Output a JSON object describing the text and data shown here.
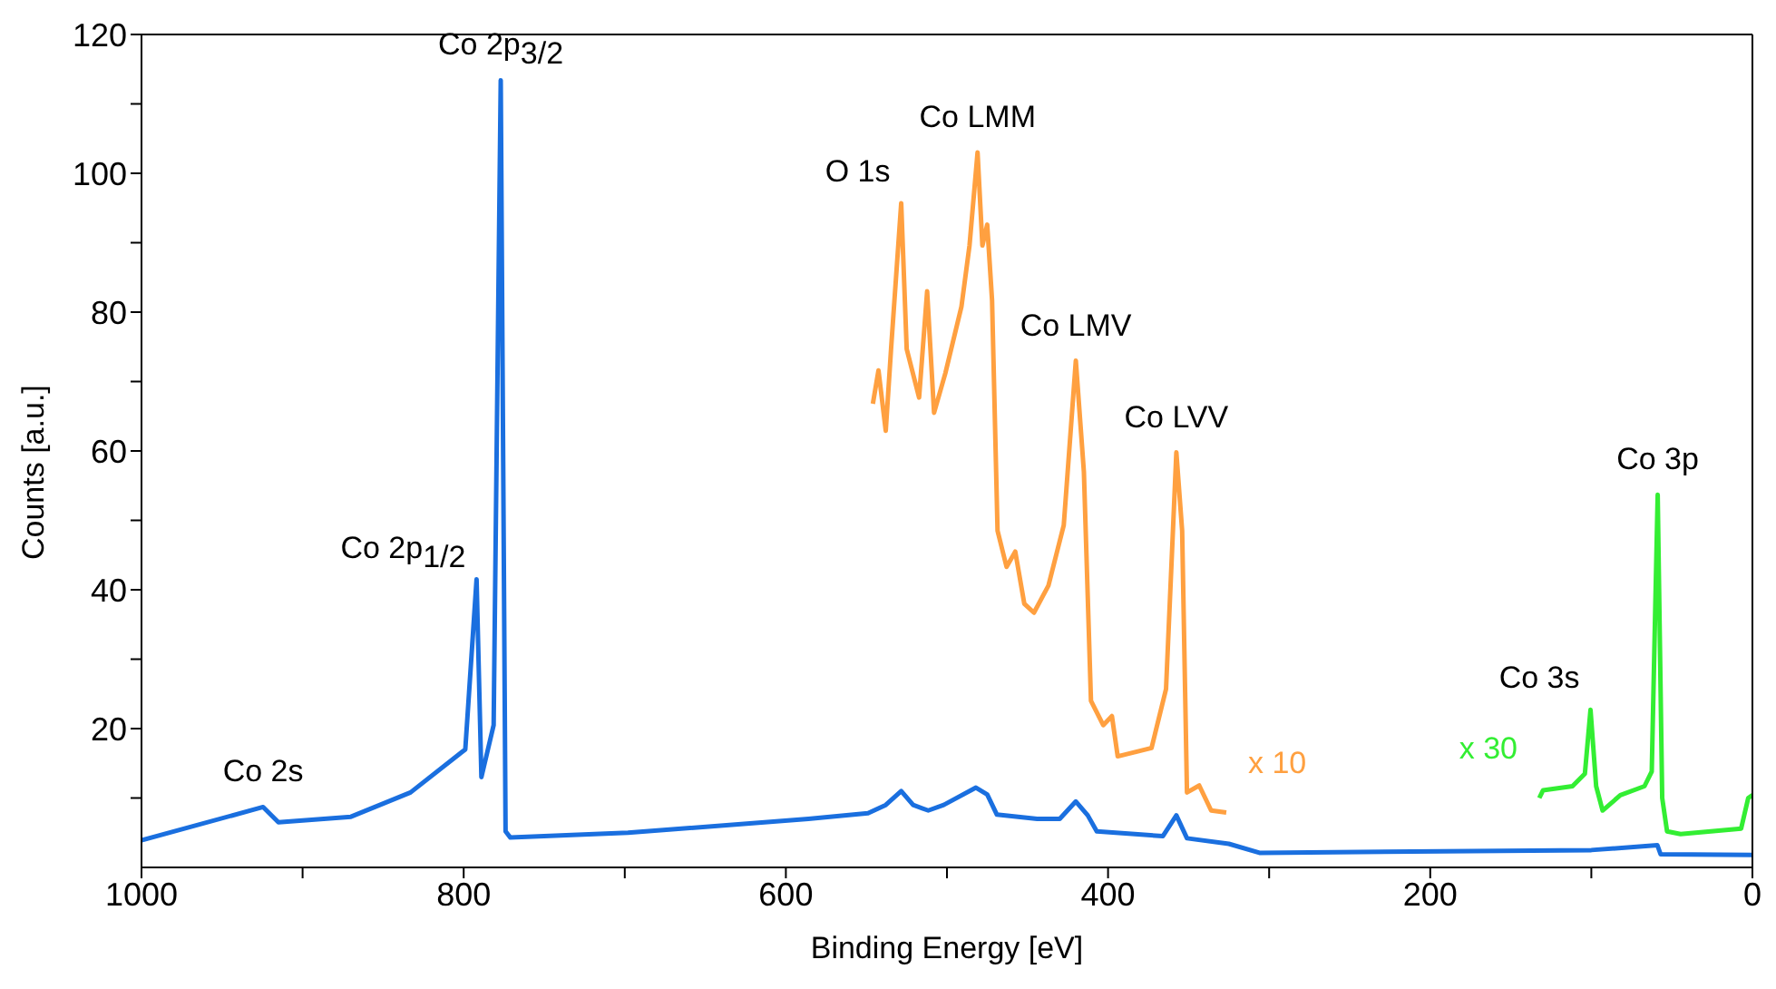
{
  "chart_data": {
    "type": "line",
    "xlabel": "Binding Energy [eV]",
    "ylabel": "Counts [a.u.]",
    "xlim": [
      1000,
      0
    ],
    "xticks": [
      1000,
      {
        "value": 900,
        "label": null
      },
      800,
      {
        "value": 700,
        "label": null
      },
      600,
      {
        "value": 500,
        "label": null
      },
      400,
      {
        "value": 300,
        "label": null
      },
      200,
      {
        "value": 100,
        "label": null
      },
      0
    ],
    "ylim": [
      0,
      120
    ],
    "yticks": [
      {
        "value": 10,
        "label": null
      },
      20,
      {
        "value": 30,
        "label": null
      },
      40,
      {
        "value": 50,
        "label": null
      },
      60,
      {
        "value": 70,
        "label": null
      },
      80,
      {
        "value": 90,
        "label": null
      },
      100,
      {
        "value": 110,
        "label": null
      },
      120
    ],
    "grid": false,
    "legend": false,
    "marker": "none",
    "line_style": "solid",
    "series": [
      {
        "color": "#1a6fdf",
        "x": [
          1000,
          924.5,
          915,
          870,
          833,
          799,
          792,
          789,
          781.4,
          777,
          774,
          771,
          698,
          586,
          549,
          538,
          528.4,
          521,
          511.6,
          502,
          482,
          475,
          469,
          444,
          430,
          420,
          412.6,
          407,
          366,
          357.6,
          351,
          325,
          306,
          100,
          59,
          57,
          0
        ],
        "values": [
          3.9,
          8.7,
          6.5,
          7.3,
          10.8,
          17,
          41.5,
          13,
          20.5,
          113.4,
          5.2,
          4.3,
          5,
          7,
          7.8,
          9,
          11,
          9,
          8.2,
          9,
          11.5,
          10.5,
          7.6,
          7,
          7,
          9.5,
          7.5,
          5.2,
          4.5,
          7.5,
          4.2,
          3.4,
          2.1,
          2.5,
          3.2,
          1.9,
          1.8
        ]
      },
      {
        "name": "x 10",
        "color": "#ffa040",
        "x": [
          546,
          542.5,
          538,
          534.7,
          528.4,
          525,
          517.3,
          512.3,
          508,
          501,
          491,
          486,
          481,
          478,
          475,
          472,
          468.6,
          463,
          457.6,
          452,
          446,
          437,
          427.5,
          420,
          415,
          410.6,
          403,
          397.6,
          394,
          373,
          364,
          357.6,
          354,
          351,
          343.4,
          336,
          326.6
        ],
        "values": [
          66.8,
          71.6,
          62.9,
          74.7,
          95.7,
          74.7,
          67.7,
          83,
          65.5,
          71.2,
          80.8,
          89.6,
          103,
          89.6,
          92.6,
          81.7,
          48.5,
          43.3,
          45.5,
          38,
          36.7,
          40.6,
          49.3,
          73,
          57,
          24,
          20.5,
          21.8,
          16,
          17.2,
          25.7,
          59.8,
          48.5,
          10.8,
          11.8,
          8.2,
          7.9
        ]
      },
      {
        "name": "x 30",
        "color": "#33ee33",
        "x": [
          132.3,
          130,
          111.7,
          104,
          100.5,
          97,
          93,
          82,
          67,
          62.5,
          58.8,
          56,
          53,
          44.6,
          7,
          2.6,
          0
        ],
        "values": [
          10,
          11.1,
          11.7,
          13.5,
          22.7,
          11.7,
          8.2,
          10.4,
          11.7,
          13.8,
          53.7,
          10,
          5.2,
          4.8,
          5.6,
          10,
          10.4
        ]
      }
    ],
    "annotations": [
      {
        "text": "Co 2s",
        "x": 924.5,
        "y": 8.7
      },
      {
        "text": "Co 2p$_{1/2}$",
        "x": 792,
        "y": 41.5
      },
      {
        "text": "Co 2p$_{3/2}$",
        "x": 777,
        "y": 113.4
      },
      {
        "text": "O 1s",
        "x": 528.4,
        "y": 95.7
      },
      {
        "text": "Co LMM",
        "x": 481,
        "y": 103
      },
      {
        "text": "Co LMV",
        "x": 420,
        "y": 73
      },
      {
        "text": "Co LVV",
        "x": 357.6,
        "y": 59.8
      },
      {
        "text": "Co 3s",
        "x": 100.5,
        "y": 22.7
      },
      {
        "text": "Co 3p",
        "x": 58.8,
        "y": 53.7
      }
    ]
  }
}
